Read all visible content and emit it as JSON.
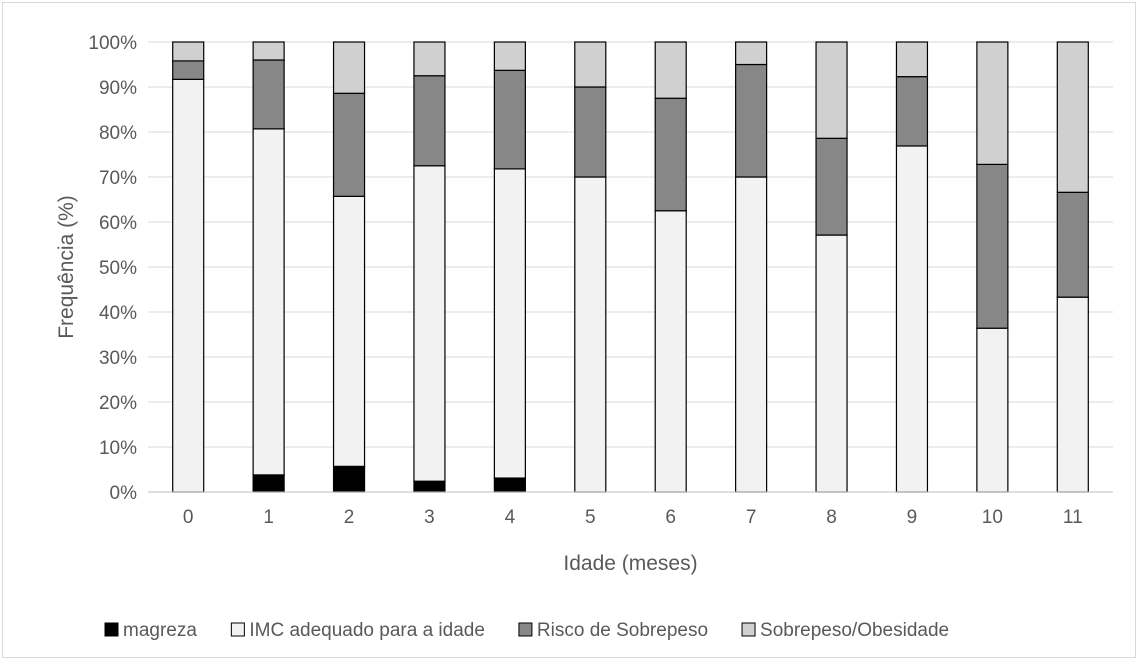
{
  "chart_data": {
    "type": "bar",
    "stacked": true,
    "title": "",
    "xlabel": "Idade (meses)",
    "ylabel": "Frequência (%)",
    "ylim": [
      0,
      100
    ],
    "y_ticks": [
      "0%",
      "10%",
      "20%",
      "30%",
      "40%",
      "50%",
      "60%",
      "70%",
      "80%",
      "90%",
      "100%"
    ],
    "categories": [
      "0",
      "1",
      "2",
      "3",
      "4",
      "5",
      "6",
      "7",
      "8",
      "9",
      "10",
      "11"
    ],
    "grid": true,
    "legend_position": "bottom",
    "series": [
      {
        "name": "magreza",
        "color": "#000000",
        "values": [
          0,
          3.8,
          5.7,
          2.4,
          3.1,
          0,
          0,
          0,
          0,
          0,
          0,
          0
        ]
      },
      {
        "name": "IMC adequado para a idade",
        "color": "#f2f2f2",
        "values": [
          91.7,
          76.9,
          60.0,
          70.1,
          68.7,
          70.0,
          62.5,
          70.0,
          57.1,
          76.9,
          36.4,
          43.3
        ]
      },
      {
        "name": "Risco de Sobrepeso",
        "color": "#878787",
        "values": [
          4.1,
          15.3,
          22.9,
          20.0,
          21.9,
          20.0,
          25.0,
          25.0,
          21.5,
          15.4,
          36.4,
          23.3
        ]
      },
      {
        "name": "Sobrepeso/Obesidade",
        "color": "#d0d0d0",
        "values": [
          4.2,
          4.0,
          11.4,
          7.5,
          6.3,
          10.0,
          12.5,
          5.0,
          21.4,
          7.7,
          27.2,
          33.4
        ]
      }
    ]
  }
}
